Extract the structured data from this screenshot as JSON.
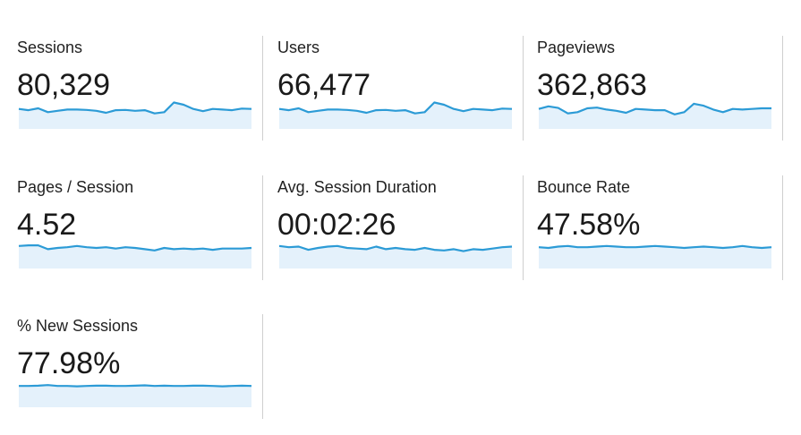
{
  "colors": {
    "line": "#2c9bd6",
    "fill": "#e4f1fb",
    "divider": "#cfcfcf"
  },
  "metrics": [
    {
      "label": "Sessions",
      "value": "80,329",
      "trend": [
        0.62,
        0.58,
        0.64,
        0.52,
        0.56,
        0.6,
        0.6,
        0.59,
        0.56,
        0.5,
        0.58,
        0.59,
        0.56,
        0.58,
        0.48,
        0.52,
        0.82,
        0.75,
        0.62,
        0.55,
        0.62,
        0.6,
        0.58,
        0.63,
        0.62
      ]
    },
    {
      "label": "Users",
      "value": "66,477",
      "trend": [
        0.62,
        0.58,
        0.64,
        0.52,
        0.56,
        0.6,
        0.6,
        0.59,
        0.56,
        0.5,
        0.58,
        0.59,
        0.56,
        0.58,
        0.48,
        0.52,
        0.82,
        0.75,
        0.62,
        0.55,
        0.62,
        0.6,
        0.58,
        0.63,
        0.62
      ]
    },
    {
      "label": "Pageviews",
      "value": "362,863",
      "trend": [
        0.62,
        0.7,
        0.65,
        0.48,
        0.52,
        0.64,
        0.66,
        0.6,
        0.56,
        0.5,
        0.62,
        0.6,
        0.58,
        0.58,
        0.45,
        0.52,
        0.78,
        0.72,
        0.6,
        0.52,
        0.62,
        0.6,
        0.62,
        0.64,
        0.64
      ]
    },
    {
      "label": "Pages / Session",
      "value": "4.52",
      "trend": [
        0.7,
        0.72,
        0.72,
        0.6,
        0.64,
        0.66,
        0.7,
        0.66,
        0.64,
        0.66,
        0.62,
        0.66,
        0.64,
        0.6,
        0.56,
        0.64,
        0.6,
        0.62,
        0.6,
        0.62,
        0.58,
        0.62,
        0.62,
        0.62,
        0.64
      ]
    },
    {
      "label": "Avg. Session Duration",
      "value": "00:02:26",
      "trend": [
        0.7,
        0.66,
        0.68,
        0.58,
        0.64,
        0.68,
        0.7,
        0.64,
        0.62,
        0.6,
        0.68,
        0.6,
        0.64,
        0.6,
        0.58,
        0.64,
        0.58,
        0.56,
        0.6,
        0.54,
        0.6,
        0.58,
        0.62,
        0.66,
        0.68
      ]
    },
    {
      "label": "Bounce Rate",
      "value": "47.58%",
      "trend": [
        0.66,
        0.64,
        0.68,
        0.7,
        0.66,
        0.66,
        0.68,
        0.7,
        0.68,
        0.66,
        0.66,
        0.68,
        0.7,
        0.68,
        0.66,
        0.64,
        0.66,
        0.68,
        0.66,
        0.64,
        0.66,
        0.7,
        0.66,
        0.64,
        0.66
      ]
    },
    {
      "label": "% New Sessions",
      "value": "77.98%",
      "trend": [
        0.66,
        0.66,
        0.67,
        0.69,
        0.66,
        0.66,
        0.65,
        0.66,
        0.67,
        0.67,
        0.66,
        0.66,
        0.67,
        0.68,
        0.66,
        0.67,
        0.66,
        0.66,
        0.67,
        0.67,
        0.66,
        0.65,
        0.66,
        0.67,
        0.66
      ]
    }
  ]
}
